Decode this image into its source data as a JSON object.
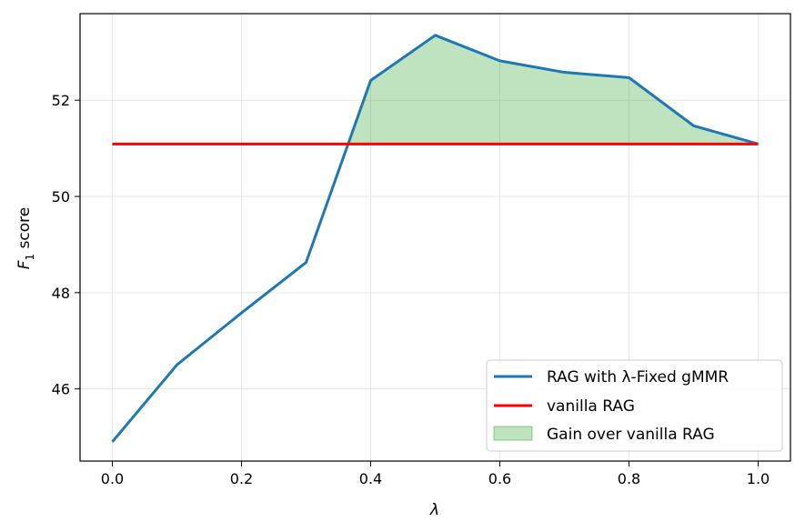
{
  "chart_data": {
    "type": "line",
    "xlabel": "λ",
    "ylabel": {
      "base": "F",
      "sub": "1",
      "rest": " score"
    },
    "xlim": [
      -0.05,
      1.05
    ],
    "ylim": [
      44.5,
      53.8
    ],
    "xticks": [
      0.0,
      0.2,
      0.4,
      0.6,
      0.8,
      1.0
    ],
    "xtick_labels": [
      "0.0",
      "0.2",
      "0.4",
      "0.6",
      "0.8",
      "1.0"
    ],
    "yticks": [
      46,
      48,
      50,
      52
    ],
    "ytick_labels": [
      "46",
      "48",
      "50",
      "52"
    ],
    "grid": true,
    "legend_position": "lower-right",
    "series": [
      {
        "name": "RAG with λ-Fixed gMMR",
        "color": "#1f77b4",
        "x": [
          0.0,
          0.1,
          0.2,
          0.3,
          0.4,
          0.5,
          0.6,
          0.7,
          0.8,
          0.9,
          1.0
        ],
        "y": [
          44.9,
          46.5,
          47.58,
          48.63,
          52.41,
          53.35,
          52.82,
          52.58,
          52.47,
          51.47,
          51.09
        ]
      },
      {
        "name": "vanilla RAG",
        "color": "#ff0000",
        "x": [
          0.0,
          1.0
        ],
        "y": [
          51.09,
          51.09
        ]
      }
    ],
    "fill": {
      "name": "Gain over vanilla RAG",
      "color": "#2ca02c",
      "baseline": 51.09
    }
  }
}
